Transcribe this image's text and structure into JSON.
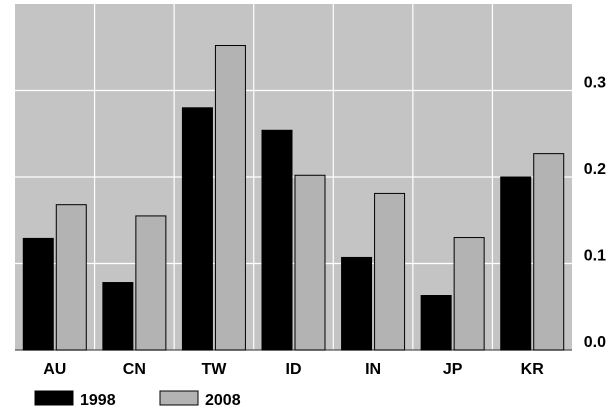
{
  "chart_data": {
    "type": "bar",
    "categories": [
      "AU",
      "CN",
      "TW",
      "ID",
      "IN",
      "JP",
      "KR"
    ],
    "series": [
      {
        "name": "1998",
        "values": [
          0.129,
          0.078,
          0.28,
          0.254,
          0.107,
          0.063,
          0.2
        ],
        "color": "#000000"
      },
      {
        "name": "2008",
        "values": [
          0.168,
          0.155,
          0.352,
          0.202,
          0.181,
          0.13,
          0.227
        ],
        "color": "#b3b3b3"
      }
    ],
    "title": "",
    "xlabel": "",
    "ylabel": "",
    "ylim": [
      0,
      0.4
    ],
    "yticks": [
      0.0,
      0.1,
      0.2,
      0.3
    ],
    "ytick_labels": [
      "0.0",
      "0.1",
      "0.2",
      "0.3"
    ],
    "y_axis_side": "right",
    "grid": true,
    "legend_position": "bottom-left",
    "plot_background": "#c4c4c4",
    "grid_color": "#ffffff"
  }
}
